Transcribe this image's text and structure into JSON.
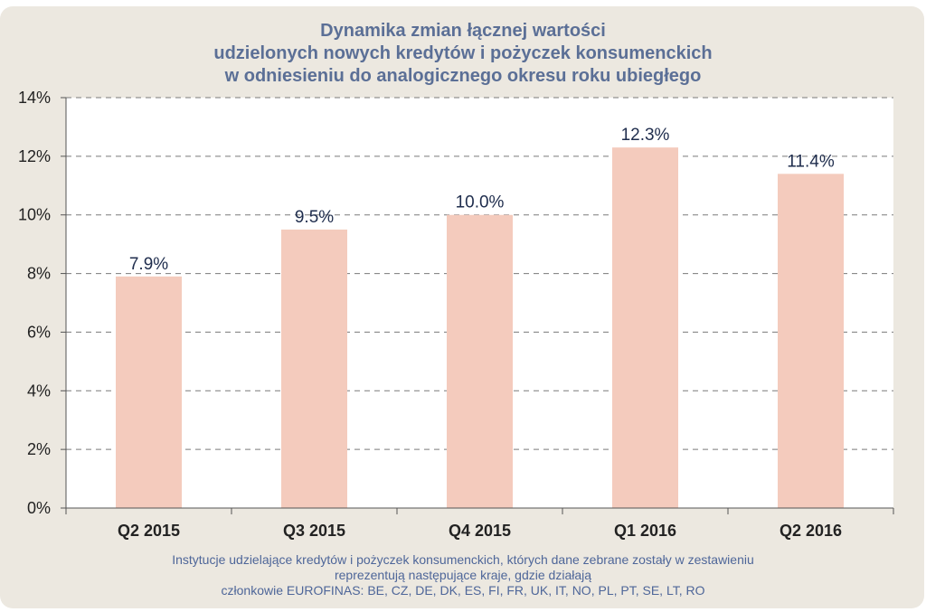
{
  "chart_data": {
    "type": "bar",
    "title": [
      "Dynamika zmian łącznej wartości",
      "udzielonych nowych kredytów i pożyczek konsumenckich",
      "w odniesieniu do analogicznego okresu roku ubiegłego"
    ],
    "categories": [
      "Q2 2015",
      "Q3 2015",
      "Q4 2015",
      "Q1 2016",
      "Q2 2016"
    ],
    "values": [
      7.9,
      9.5,
      10.0,
      12.3,
      11.4
    ],
    "data_labels": [
      "7.9%",
      "9.5%",
      "10.0%",
      "12.3%",
      "11.4%"
    ],
    "ylim": [
      0,
      14
    ],
    "yticks": [
      0,
      2,
      4,
      6,
      8,
      10,
      12,
      14
    ],
    "ytick_labels": [
      "0%",
      "2%",
      "4%",
      "6%",
      "8%",
      "10%",
      "12%",
      "14%"
    ],
    "grid": "horizontal dashed",
    "legend": "none",
    "colors": {
      "bar": "#f4cbbd",
      "title": "#5b6f96",
      "footnote": "#4e6699",
      "frame": "#ece8e0",
      "plot_bg": "#ffffff",
      "gridline": "#7a7a7a"
    }
  },
  "footnote": [
    "Instytucje udzielające kredytów i pożyczek konsumenckich, których dane zebrane zostały w zestawieniu",
    "reprezentują następujące kraje, gdzie działają",
    "członkowie EUROFINAS: BE, CZ, DE, DK, ES, FI, FR, UK, IT, NO, PL, PT, SE, LT, RO"
  ]
}
